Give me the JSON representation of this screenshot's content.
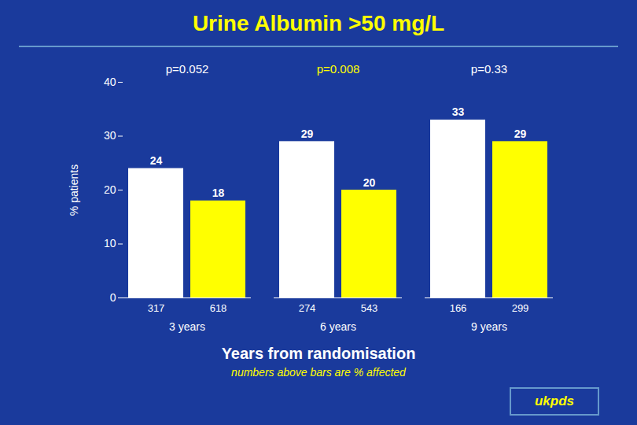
{
  "chart_data": {
    "type": "bar",
    "title": "Urine Albumin >50 mg/L",
    "categories": [
      "3 years",
      "6 years",
      "9 years"
    ],
    "series": [
      {
        "color": "#FFFFFF",
        "values": [
          24,
          29,
          33
        ],
        "n": [
          317,
          274,
          166
        ]
      },
      {
        "color": "#FFFF00",
        "values": [
          18,
          20,
          29
        ],
        "n": [
          618,
          543,
          299
        ]
      }
    ],
    "ylabel": "% patients",
    "xlabel": "Years from randomisation",
    "caption": "numbers above bars are % affected",
    "annotations": [
      {
        "category": "3 years",
        "text": "p=0.052",
        "color": "#FFFFFF"
      },
      {
        "category": "6 years",
        "text": "p=0.008",
        "color": "#FFFF00"
      },
      {
        "category": "9 years",
        "text": "p=0.33",
        "color": "#FFFFFF"
      }
    ],
    "logo": "ukpds",
    "ylim": [
      0,
      40
    ],
    "yticks": [
      0,
      10,
      20,
      30,
      40
    ],
    "grid": false,
    "data_labels": true
  }
}
